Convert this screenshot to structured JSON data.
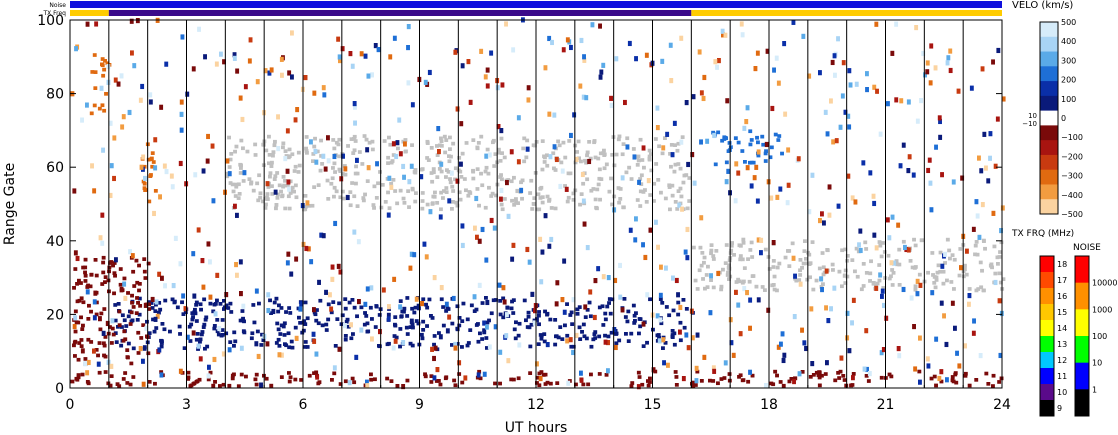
{
  "chart_data": [
    {
      "type": "heatmap",
      "title": "",
      "xlabel": "UT hours",
      "ylabel": "Range Gate",
      "xlim": [
        0,
        24
      ],
      "ylim": [
        0,
        100
      ],
      "xticks": [
        "0",
        "3",
        "6",
        "9",
        "12",
        "15",
        "18",
        "21",
        "24"
      ],
      "yticks": [
        "0",
        "20",
        "40",
        "60",
        "80",
        "100"
      ],
      "scan_boundaries_ut": [
        1.0,
        2.0,
        3.0,
        4.0,
        5.0,
        6.0,
        7.0,
        8.0,
        9.0,
        10.0,
        11.0,
        12.0,
        13.0,
        14.0,
        15.0,
        16.0,
        17.0,
        18.0,
        19.0,
        20.0,
        21.0,
        22.0,
        23.0
      ],
      "grid": false,
      "colorbar": {
        "label": "VELO (km/s)",
        "ticks": [
          "500",
          "400",
          "300",
          "200",
          "100",
          "0",
          "−100",
          "−200",
          "−300",
          "−400",
          "−500"
        ],
        "inset_labels": [
          "10",
          "−10"
        ],
        "colors": [
          "#d6ecfa",
          "#a8d4f5",
          "#5aaae8",
          "#1e6fd6",
          "#0a2fa8",
          "#0a1a7a",
          "#ffffff",
          "#7a0a0a",
          "#a81410",
          "#c83a10",
          "#e06a10",
          "#f29c40",
          "#fbd3a0"
        ]
      },
      "regions": [
        {
          "name": "ground_scatter_band",
          "ut": [
            4.0,
            16.0
          ],
          "gate": [
            48,
            68
          ],
          "color": "#c0c0c0"
        },
        {
          "name": "ground_scatter_band_late",
          "ut": [
            16.0,
            24.0
          ],
          "gate": [
            26,
            40
          ],
          "color": "#c0c0c0"
        },
        {
          "name": "negative_velocity_low",
          "ut": [
            0.0,
            24.0
          ],
          "gate": [
            0,
            4
          ],
          "color": "#7a0a0a"
        },
        {
          "name": "positive_velocity_band",
          "ut": [
            1.0,
            16.0
          ],
          "gate": [
            10,
            24
          ],
          "color": "#0a1a7a"
        },
        {
          "name": "positive_velocity_patch",
          "ut": [
            16.5,
            18.3
          ],
          "gate": [
            60,
            70
          ],
          "color": "#1e6fd6"
        },
        {
          "name": "negative_velocity_early",
          "ut": [
            0.0,
            2.0
          ],
          "gate": [
            6,
            35
          ],
          "color": "#7a0a0a"
        },
        {
          "name": "orange_patch_1",
          "ut": [
            0.5,
            1.0
          ],
          "gate": [
            74,
            90
          ],
          "color": "#e06a10"
        },
        {
          "name": "orange_patch_2",
          "ut": [
            1.8,
            2.2
          ],
          "gate": [
            50,
            70
          ],
          "color": "#e06a10"
        }
      ]
    },
    {
      "type": "heatmap",
      "title": "",
      "xlabel": "",
      "ylabel": "",
      "name": "TX FRQ (MHz)",
      "ticks": [
        "18",
        "17",
        "16",
        "15",
        "14",
        "13",
        "12",
        "11",
        "10",
        "9"
      ],
      "colors": [
        "#ff0000",
        "#ff4a00",
        "#ff9000",
        "#ffc800",
        "#ffff00",
        "#00ff00",
        "#00c8ff",
        "#0000ff",
        "#5a0a8a",
        "#000000"
      ]
    },
    {
      "type": "heatmap",
      "title": "",
      "xlabel": "",
      "ylabel": "",
      "name": "NOISE",
      "ticks": [
        "10000",
        "1000",
        "100",
        "10",
        "1"
      ],
      "colors": [
        "#ff0000",
        "#ff9000",
        "#ffff00",
        "#00ff00",
        "#0000ff",
        "#000000"
      ]
    }
  ],
  "status_bars": {
    "noise_label": "Noise",
    "txfreq_label": "TX Freq",
    "noise_color": "#1010dd",
    "txfreq_colors": [
      "#ffcc00",
      "#3a0a8a"
    ],
    "txfreq_segments_ut": [
      [
        0.0,
        1.0,
        "#ffcc00"
      ],
      [
        1.0,
        16.0,
        "#3a0a8a"
      ],
      [
        16.0,
        24.0,
        "#ffcc00"
      ]
    ]
  }
}
